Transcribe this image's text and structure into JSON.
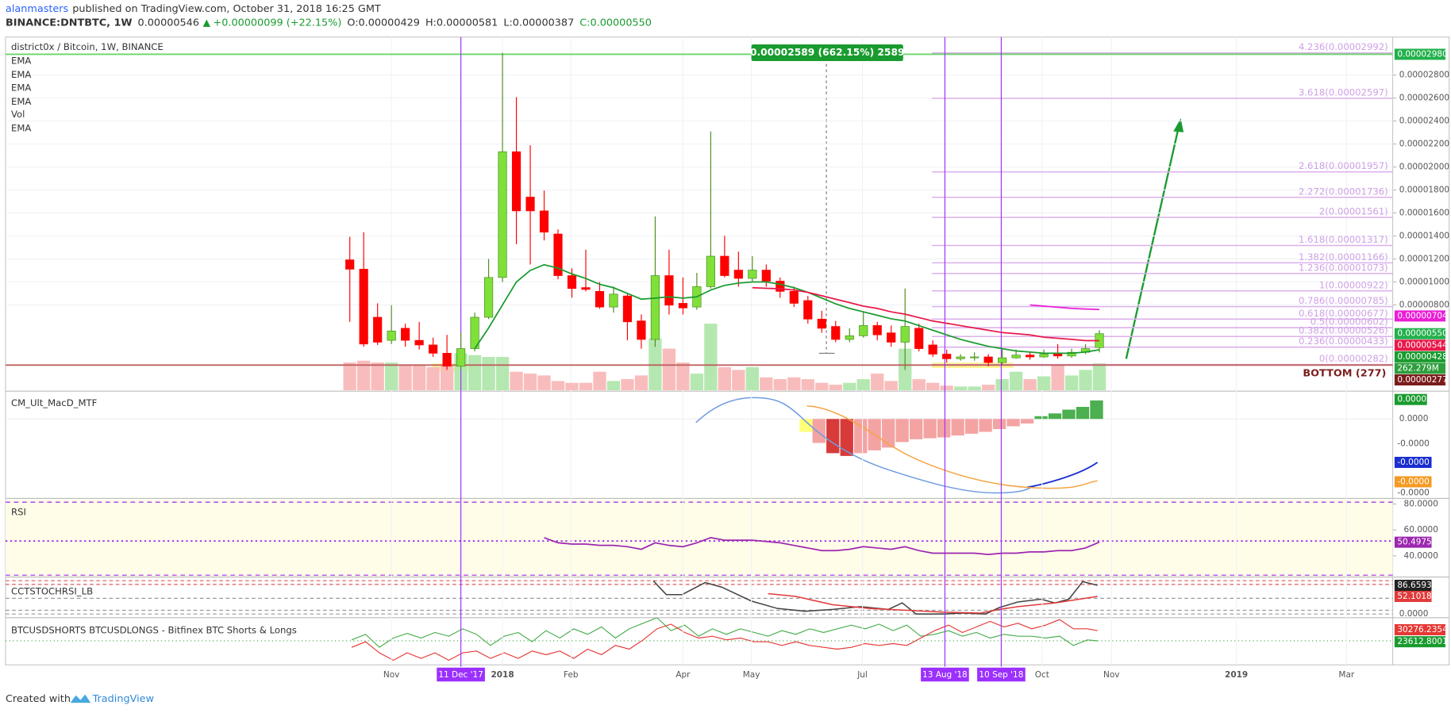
{
  "header": {
    "author": "alanmasters",
    "published": "published on TradingView.com, October 31, 2018 16:25 GMT",
    "symbol": "BINANCE:DNTBTC, 1W",
    "last": "0.00000546",
    "change": "+0.00000099 (+22.15%)",
    "ohlc": [
      "O:0.00000429",
      "H:0.00000581",
      "L:0.00000387",
      "C:0.00000550"
    ]
  },
  "chart_data": [
    {
      "type": "candlestick",
      "title": "district0x / Bitcoin, 1W, BINANCE",
      "legend": [
        "EMA",
        "EMA",
        "EMA",
        "EMA",
        "Vol",
        "EMA"
      ],
      "up_color": "#7fe03a",
      "down_color": "#ff0000",
      "open": [
        1.192e-05,
        1.111e-05,
        6.93e-06,
        4.92e-06,
        5.97e-06,
        4.92e-06,
        4.52e-06,
        3.8e-06,
        2.67e-06,
        4.2e-06,
        6.93e-06,
        1.039e-05,
        2.132e-05,
        1.738e-05,
        1.618e-05,
        1.417e-05,
        1.055e-05,
        9.51e-06,
        9.18e-06,
        7.82e-06,
        8.78e-06,
        6.61e-06,
        5e-06,
        1.055e-05,
        8.14e-06,
        7.82e-06,
        9.59e-06,
        1.224e-05,
        1.103e-05,
        1.031e-05,
        1.103e-05,
        1.007e-05,
        9.18e-06,
        8.38e-06,
        6.77e-06,
        6.13e-06,
        5e-06,
        5.32e-06,
        6.21e-06,
        5.57e-06,
        4.76e-06,
        5.97e-06,
        4.52e-06,
        3.72e-06,
        3.32e-06,
        3.4e-06,
        3.48e-06,
        2.99e-06,
        3.4e-06,
        3.64e-06,
        3.48e-06,
        3.8e-06,
        3.56e-06,
        3.88e-06,
        4.29e-06
      ],
      "high": [
        1.393e-05,
        1.433e-05,
        8.14e-06,
        7.98e-06,
        6.37e-06,
        6.53e-06,
        5.16e-06,
        5.4e-06,
        5.57e-06,
        7.33e-06,
        1.2e-05,
        2.993e-05,
        2.607e-05,
        2.189e-05,
        1.795e-05,
        1.457e-05,
        1.119e-05,
        1.28e-05,
        9.99e-06,
        9.59e-06,
        8.94e-06,
        7.17e-06,
        1.57e-05,
        1.28e-05,
        1.039e-05,
        1.079e-05,
        2.309e-05,
        1.401e-05,
        1.264e-05,
        1.224e-05,
        1.152e-05,
        1.039e-05,
        9.59e-06,
        8.78e-06,
        7.49e-06,
        6.61e-06,
        5.97e-06,
        7.41e-06,
        6.53e-06,
        6.21e-06,
        9.43e-06,
        6.37e-06,
        4.92e-06,
        4.12e-06,
        3.72e-06,
        3.88e-06,
        3.72e-06,
        4.12e-06,
        4.12e-06,
        3.96e-06,
        4.12e-06,
        4.6e-06,
        4.2e-06,
        4.6e-06,
        5.81e-06
      ],
      "low": [
        6.53e-06,
        4.36e-06,
        4.52e-06,
        4.6e-06,
        4.36e-06,
        4.12e-06,
        3.48e-06,
        2.35e-06,
        2.35e-06,
        3.96e-06,
        6.77e-06,
        9.99e-06,
        1.328e-05,
        1.152e-05,
        1.361e-05,
        1.023e-05,
        8.62e-06,
        9.18e-06,
        7.66e-06,
        7.33e-06,
        4.92e-06,
        4.2e-06,
        4.36e-06,
        7.17e-06,
        7.17e-06,
        7.58e-06,
        9.43e-06,
        1.039e-05,
        9.59e-06,
        9.99e-06,
        9.59e-06,
        8.62e-06,
        7.82e-06,
        6.37e-06,
        5.57e-06,
        4.76e-06,
        4.76e-06,
        5.16e-06,
        4.92e-06,
        4.36e-06,
        2.35e-06,
        3.96e-06,
        3.48e-06,
        2.99e-06,
        3.15e-06,
        3.15e-06,
        2.67e-06,
        2.83e-06,
        3.32e-06,
        3.24e-06,
        3.4e-06,
        3.32e-06,
        3.4e-06,
        3.72e-06,
        3.87e-06
      ],
      "close": [
        1.111e-05,
        4.6e-06,
        4.76e-06,
        5.73e-06,
        4.92e-06,
        4.52e-06,
        3.8e-06,
        2.67e-06,
        4.2e-06,
        6.93e-06,
        1.039e-05,
        2.132e-05,
        1.618e-05,
        1.618e-05,
        1.433e-05,
        1.055e-05,
        9.43e-06,
        9.35e-06,
        7.82e-06,
        8.94e-06,
        6.53e-06,
        5e-06,
        1.055e-05,
        7.98e-06,
        7.74e-06,
        9.59e-06,
        1.224e-05,
        1.055e-05,
        1.031e-05,
        1.103e-05,
        1.007e-05,
        9.18e-06,
        8.14e-06,
        6.77e-06,
        5.97e-06,
        5e-06,
        5.32e-06,
        6.21e-06,
        5.4e-06,
        4.76e-06,
        6.13e-06,
        4.2e-06,
        3.72e-06,
        3.32e-06,
        3.48e-06,
        3.48e-06,
        2.99e-06,
        3.4e-06,
        3.64e-06,
        3.48e-06,
        3.72e-06,
        3.56e-06,
        3.88e-06,
        4.2e-06,
        5.5e-06
      ],
      "volume": [
        270,
        288,
        270,
        270,
        252,
        252,
        225,
        252,
        360,
        342,
        324,
        324,
        180,
        162,
        144,
        90,
        72,
        72,
        180,
        90,
        108,
        144,
        504,
        405,
        270,
        162,
        648,
        225,
        198,
        225,
        126,
        108,
        126,
        108,
        72,
        54,
        72,
        108,
        162,
        90,
        405,
        108,
        72,
        45,
        36,
        36,
        54,
        108,
        180,
        108,
        135,
        252,
        144,
        198,
        262.279
      ],
      "volume_label": {
        "value": 262.279,
        "label": "262.279M",
        "color": "#2e9e3e"
      },
      "series": [
        {
          "color": "#1a9b2f",
          "values": [
            null,
            null,
            null,
            null,
            null,
            null,
            null,
            null,
            null,
            4.2e-06,
            6e-06,
            8e-06,
            1e-05,
            1.1e-05,
            1.15e-05,
            1.12e-05,
            1.07e-05,
            1.03e-05,
            9.8e-06,
            9.5e-06,
            9e-06,
            8.5e-06,
            8.6e-06,
            8.7e-06,
            8.6e-06,
            8.7e-06,
            9.3e-06,
            9.7e-06,
            9.9e-06,
            1e-05,
            1e-05,
            9.8e-06,
            9.5e-06,
            9.1e-06,
            8.6e-06,
            8.1e-06,
            7.7e-06,
            7.4e-06,
            7.1e-06,
            6.8e-06,
            6.6e-06,
            6.2e-06,
            5.8e-06,
            5.4e-06,
            5e-06,
            4.7e-06,
            4.4e-06,
            4.2e-06,
            4e-06,
            3.9e-06,
            3.8e-06,
            3.8e-06,
            3.8e-06,
            3.9e-06,
            4.1e-06
          ]
        },
        {
          "color": "#e8194a",
          "values": [
            null,
            null,
            null,
            null,
            null,
            null,
            null,
            null,
            null,
            null,
            null,
            null,
            null,
            null,
            null,
            null,
            null,
            null,
            null,
            null,
            null,
            null,
            null,
            null,
            null,
            null,
            null,
            null,
            null,
            9.5e-06,
            9.45e-06,
            9.4e-06,
            9.3e-06,
            9.1e-06,
            8.8e-06,
            8.5e-06,
            8.2e-06,
            7.9e-06,
            7.7e-06,
            7.4e-06,
            7.2e-06,
            6.9e-06,
            6.6e-06,
            6.4e-06,
            6.2e-06,
            6e-06,
            5.8e-06,
            5.6e-06,
            5.5e-06,
            5.4e-06,
            5.2e-06,
            5.1e-06,
            5e-06,
            4.9e-06,
            4.9e-06
          ]
        },
        {
          "color": "#e91ed6",
          "values": [
            null,
            null,
            null,
            null,
            null,
            null,
            null,
            null,
            null,
            null,
            null,
            null,
            null,
            null,
            null,
            null,
            null,
            null,
            null,
            null,
            null,
            null,
            null,
            null,
            null,
            null,
            null,
            null,
            null,
            null,
            null,
            null,
            null,
            null,
            null,
            null,
            null,
            null,
            null,
            null,
            null,
            null,
            null,
            null,
            null,
            null,
            null,
            null,
            null,
            8e-06,
            7.9e-06,
            7.8e-06,
            7.7e-06,
            7.65e-06,
            7.6e-06
          ]
        }
      ],
      "xlim": [
        -24.8,
        75.13
      ],
      "ylim": [
        5.8e-07,
        3.13e-05
      ],
      "xticks": [
        {
          "value": 3,
          "label": "Nov"
        },
        {
          "value": 11,
          "label": "2018"
        },
        {
          "value": 15.93,
          "label": "Feb"
        },
        {
          "value": 24,
          "label": "Apr"
        },
        {
          "value": 28.93,
          "label": "May"
        },
        {
          "value": 36.93,
          "label": "Jul"
        },
        {
          "value": 49.87,
          "label": "Oct"
        },
        {
          "value": 54.87,
          "label": "Nov"
        },
        {
          "value": 63.87,
          "label": "2019"
        },
        {
          "value": 71.8,
          "label": "Mar"
        }
      ],
      "yticks": [
        {
          "value": 2.8e-05,
          "label": "0.00002800"
        },
        {
          "value": 2.6e-05,
          "label": "0.00002600"
        },
        {
          "value": 2.4e-05,
          "label": "0.00002400"
        },
        {
          "value": 2.2e-05,
          "label": "0.00002200"
        },
        {
          "value": 2e-05,
          "label": "0.00002000"
        },
        {
          "value": 1.8e-05,
          "label": "0.00001800"
        },
        {
          "value": 1.6e-05,
          "label": "0.00001600"
        },
        {
          "value": 1.4e-05,
          "label": "0.00001400"
        },
        {
          "value": 1.2e-05,
          "label": "0.00001200"
        },
        {
          "value": 1e-05,
          "label": "0.00001000"
        },
        {
          "value": 8e-06,
          "label": "0.00000800"
        }
      ],
      "price_labels": [
        {
          "value": 2.98e-05,
          "label": "0.00002980",
          "color": "#22b14c"
        },
        {
          "value": 7.04e-06,
          "label": "0.00000704",
          "color": "#e91ed6"
        },
        {
          "value": 5.5e-06,
          "label": "0.00000550",
          "color": "#22b14c"
        },
        {
          "value": 5.44e-06,
          "label": "0.00000544",
          "color": "#e8194a"
        },
        {
          "value": 4.28e-06,
          "label": "0.00000428",
          "color": "#1a9b2f"
        },
        {
          "value": 2.77e-06,
          "label": "0.00000277",
          "color": "#7b1c1c"
        }
      ],
      "levels": [
        {
          "value": 2.98e-05,
          "color": "#6ad66a"
        },
        {
          "value": 2.77e-06,
          "color": "#c06060",
          "label": "BOTTOM (277)"
        }
      ],
      "fib": [
        {
          "value": 2.992e-05,
          "label": "4.236(0.00002992)"
        },
        {
          "value": 2.597e-05,
          "label": "3.618(0.00002597)"
        },
        {
          "value": 1.957e-05,
          "label": "2.618(0.00001957)"
        },
        {
          "value": 1.736e-05,
          "label": "2.272(0.00001736)"
        },
        {
          "value": 1.561e-05,
          "label": "2(0.00001561)"
        },
        {
          "value": 1.317e-05,
          "label": "1.618(0.00001317)"
        },
        {
          "value": 1.166e-05,
          "label": "1.382(0.00001166)"
        },
        {
          "value": 1.073e-05,
          "label": "1.236(0.00001073)"
        },
        {
          "value": 9.22e-06,
          "label": "1(0.00000922)"
        },
        {
          "value": 7.85e-06,
          "label": "0.786(0.00000785)"
        },
        {
          "value": 6.77e-06,
          "label": "0.618(0.00000677)"
        },
        {
          "value": 6.02e-06,
          "label": "0.5(0.00000602)"
        },
        {
          "value": 5.26e-06,
          "label": "0.382(0.00000526)"
        },
        {
          "value": 4.33e-06,
          "label": "0.236(0.00000433)"
        },
        {
          "value": 2.82e-06,
          "label": "0(0.00000282)"
        }
      ],
      "date_markers": [
        {
          "value": 8,
          "label": "11 Dec '17"
        },
        {
          "value": 42.87,
          "label": "13 Aug '18"
        },
        {
          "value": 46.93,
          "label": "10 Sep '18"
        }
      ],
      "annotations": [
        "0.00002589 (662.15%) 2589"
      ]
    },
    {
      "type": "line",
      "title": "RSI",
      "series": [
        {
          "color": "#9c27b0",
          "values": [
            null,
            null,
            null,
            null,
            null,
            null,
            null,
            null,
            null,
            null,
            null,
            null,
            null,
            null,
            54,
            50,
            49,
            49,
            48,
            48,
            47,
            45,
            50,
            48,
            47,
            50,
            54,
            52,
            52,
            52,
            51,
            50,
            48,
            46,
            44,
            44,
            45,
            47,
            46,
            45,
            47,
            44,
            42,
            42,
            42,
            42,
            41,
            42,
            42,
            43,
            43,
            44,
            44,
            46,
            50.4975
          ]
        }
      ],
      "ylim": [
        23.6,
        83.6
      ],
      "yticks": [
        {
          "value": 80,
          "label": "80.0000"
        },
        {
          "value": 60,
          "label": "60.0000"
        },
        {
          "value": 40,
          "label": "40.0000"
        }
      ]
    }
  ],
  "macd": {
    "title": "CM_Ult_MacD_MTF",
    "labels": [
      "0.0000",
      "0.0000",
      "-0.0000",
      "-0.0000",
      "-0.0000",
      "-0.0000"
    ]
  },
  "stoch": {
    "title": "CCTSTOCHRSI_LB",
    "labels": [
      "86.6593",
      "52.1018",
      "0.0000"
    ]
  },
  "shorts": {
    "title": "BTCUSDSHORTS BTCUSDLONGS - Bitfinex BTC Shorts & Longs",
    "labels": [
      "30276.2354",
      "23612.8001"
    ]
  },
  "footer": {
    "created": "Created with",
    "brand": "TradingView"
  }
}
